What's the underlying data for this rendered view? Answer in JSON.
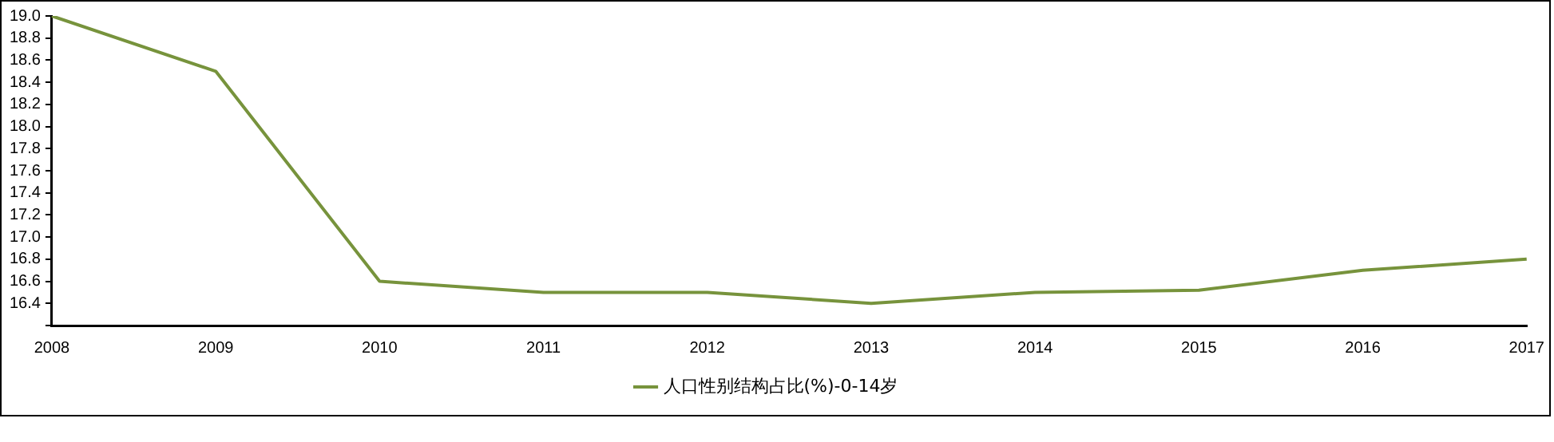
{
  "chart_data": {
    "type": "line",
    "categories": [
      "2008",
      "2009",
      "2010",
      "2011",
      "2012",
      "2013",
      "2014",
      "2015",
      "2016",
      "2017"
    ],
    "series": [
      {
        "name": "人口性别结构占比(%)-0-14岁",
        "color": "#77933c",
        "values": [
          19.0,
          18.5,
          16.6,
          16.5,
          16.5,
          16.4,
          16.5,
          16.52,
          16.7,
          16.8
        ]
      }
    ],
    "ylim": [
      16.2,
      19.0
    ],
    "yticks": [
      {
        "value": 16.2,
        "label": null
      },
      16.4,
      16.6,
      16.8,
      {
        "value": 17,
        "label": "17.0"
      },
      17.2,
      17.4,
      17.6,
      17.8,
      {
        "value": 18,
        "label": "18.0"
      },
      18.2,
      18.4,
      18.6,
      18.8,
      {
        "value": 19,
        "label": "19.0"
      }
    ],
    "grid": false,
    "legend": "bottom",
    "marker": "none",
    "line_style": "solid"
  }
}
